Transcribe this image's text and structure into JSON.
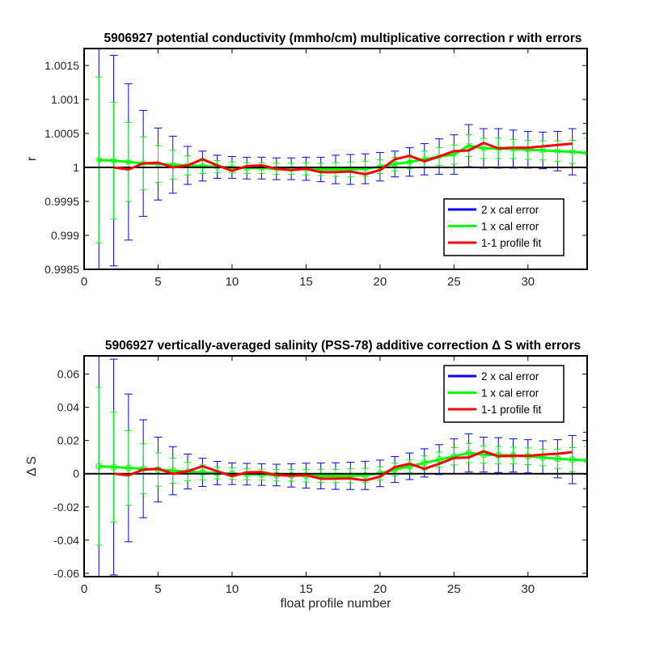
{
  "chart_data": [
    {
      "type": "line",
      "title": "5906927 potential conductivity (mmho/cm) multiplicative correction r with errors",
      "xlabel": "",
      "ylabel": "r",
      "xlim": [
        0,
        34
      ],
      "ylim": [
        0.9985,
        1.00175
      ],
      "xticks": [
        0,
        5,
        10,
        15,
        20,
        25,
        30
      ],
      "xtick_labels": [
        "0",
        "5",
        "10",
        "15",
        "20",
        "25",
        "30"
      ],
      "yticks": [
        0.9985,
        0.999,
        0.9995,
        1,
        1.0005,
        1.001,
        1.0015
      ],
      "ytick_labels": [
        "0.9985",
        "0.999",
        "0.9995",
        "1",
        "1.0005",
        "1.001",
        "1.0015"
      ],
      "grid": false,
      "legend_position": "bottom-right",
      "reference_line": 1,
      "x": [
        1,
        2,
        3,
        4,
        5,
        6,
        7,
        8,
        9,
        10,
        11,
        12,
        13,
        14,
        15,
        16,
        17,
        18,
        19,
        20,
        21,
        22,
        23,
        24,
        25,
        26,
        27,
        28,
        29,
        30,
        31,
        32,
        33,
        34
      ],
      "series": [
        {
          "name": "2 x cal error",
          "color": "#0000ff",
          "kind": "errorbar",
          "center": [
            1.00011,
            1.0001,
            1.00008,
            1.00006,
            1.00005,
            1.00004,
            1.00003,
            1.00002,
            1.00001,
            1.0,
            0.99999,
            0.99999,
            0.99998,
            0.99998,
            0.99998,
            0.99997,
            0.99997,
            0.99997,
            0.99998,
            1.00001,
            1.00005,
            1.00008,
            1.00012,
            1.00016,
            1.00019,
            1.00032,
            1.00028,
            1.00028,
            1.00027,
            1.00026,
            1.00025,
            1.00024,
            1.00023,
            1.00021
          ],
          "error": [
            0.0026,
            0.00155,
            0.00115,
            0.00078,
            0.00053,
            0.00042,
            0.00028,
            0.00022,
            0.00017,
            0.00016,
            0.00016,
            0.00016,
            0.00016,
            0.00016,
            0.00017,
            0.00018,
            0.00021,
            0.00022,
            0.00022,
            0.00021,
            0.00019,
            0.00021,
            0.00023,
            0.00026,
            0.00029,
            0.00031,
            0.00029,
            0.00029,
            0.00028,
            0.00027,
            0.00027,
            0.00029,
            0.00034,
            0.00044
          ]
        },
        {
          "name": "1 x cal error",
          "color": "#00ff00",
          "kind": "errorbar",
          "center": [
            1.00011,
            1.0001,
            1.00008,
            1.00006,
            1.00005,
            1.00004,
            1.00003,
            1.00002,
            1.00001,
            1.0,
            0.99999,
            0.99999,
            0.99998,
            0.99998,
            0.99998,
            0.99997,
            0.99997,
            0.99997,
            0.99998,
            1.00001,
            1.00005,
            1.00008,
            1.00012,
            1.00016,
            1.00019,
            1.00032,
            1.00028,
            1.00028,
            1.00027,
            1.00026,
            1.00025,
            1.00024,
            1.00023,
            1.00021
          ],
          "error": [
            0.00122,
            0.00086,
            0.00058,
            0.00039,
            0.00027,
            0.00021,
            0.00014,
            0.00011,
            9e-05,
            8e-05,
            8e-05,
            8e-05,
            8e-05,
            8e-05,
            9e-05,
            9e-05,
            0.0001,
            0.00011,
            0.00011,
            0.0001,
            0.0001,
            0.0001,
            0.00012,
            0.00013,
            0.00014,
            0.00016,
            0.00015,
            0.00015,
            0.00014,
            0.00014,
            0.00014,
            0.00015,
            0.00017,
            0.00022
          ]
        },
        {
          "name": "1-1 profile fit",
          "color": "#ff0000",
          "kind": "line",
          "x": [
            2,
            3,
            4,
            5,
            6,
            7,
            8,
            9,
            10,
            11,
            12,
            13,
            14,
            15,
            16,
            17,
            18,
            19,
            20,
            21,
            22,
            23,
            24,
            25,
            26,
            27,
            28,
            29,
            30,
            31,
            32,
            33
          ],
          "values": [
            1.0,
            0.99997,
            1.00006,
            1.00007,
            1.0,
            1.00003,
            1.00012,
            1.00003,
            0.99995,
            1.00002,
            1.00003,
            0.99998,
            0.99996,
            0.99998,
            0.99993,
            0.99993,
            0.99994,
            0.9999,
            0.99996,
            1.00012,
            1.00017,
            1.00009,
            1.00016,
            1.00024,
            1.00025,
            1.00036,
            1.00028,
            1.00029,
            1.00029,
            1.00031,
            1.00033,
            1.00035
          ]
        }
      ],
      "legend": [
        "2 x cal error",
        "1 x cal error",
        "1-1 profile fit"
      ]
    },
    {
      "type": "line",
      "title": "5906927 vertically-averaged salinity (PSS-78) additive correction Δ S with errors",
      "xlabel": "float profile number",
      "ylabel": "Δ S",
      "xlim": [
        0,
        34
      ],
      "ylim": [
        -0.062,
        0.071
      ],
      "xticks": [
        0,
        5,
        10,
        15,
        20,
        25,
        30
      ],
      "xtick_labels": [
        "0",
        "5",
        "10",
        "15",
        "20",
        "25",
        "30"
      ],
      "yticks": [
        -0.06,
        -0.04,
        -0.02,
        0,
        0.02,
        0.04,
        0.06
      ],
      "ytick_labels": [
        "-0.06",
        "-0.04",
        "-0.02",
        "0",
        "0.02",
        "0.04",
        "0.06"
      ],
      "grid": false,
      "legend_position": "top-right",
      "reference_line": 0,
      "x": [
        1,
        2,
        3,
        4,
        5,
        6,
        7,
        8,
        9,
        10,
        11,
        12,
        13,
        14,
        15,
        16,
        17,
        18,
        19,
        20,
        21,
        22,
        23,
        24,
        25,
        26,
        27,
        28,
        29,
        30,
        31,
        32,
        33,
        34
      ],
      "series": [
        {
          "name": "2 x cal error",
          "color": "#0000ff",
          "kind": "errorbar",
          "center": [
            0.0045,
            0.004,
            0.0035,
            0.003,
            0.0025,
            0.0018,
            0.0013,
            0.0008,
            0.0004,
            0.0,
            -0.0003,
            -0.0005,
            -0.0008,
            -0.001,
            -0.0012,
            -0.0013,
            -0.0014,
            -0.0013,
            -0.001,
            0.0002,
            0.0025,
            0.0045,
            0.0065,
            0.0085,
            0.0105,
            0.0125,
            0.0115,
            0.0112,
            0.011,
            0.0105,
            0.0098,
            0.009,
            0.0085,
            0.008
          ],
          "error": [
            0.11,
            0.065,
            0.0445,
            0.0295,
            0.0195,
            0.0145,
            0.0105,
            0.0085,
            0.007,
            0.0065,
            0.0065,
            0.0065,
            0.0065,
            0.007,
            0.0075,
            0.0078,
            0.008,
            0.0082,
            0.0085,
            0.008,
            0.0078,
            0.008,
            0.0085,
            0.009,
            0.0105,
            0.0115,
            0.0105,
            0.0105,
            0.01,
            0.01,
            0.01,
            0.0115,
            0.0145,
            0.017
          ]
        },
        {
          "name": "1 x cal error",
          "color": "#00ff00",
          "kind": "errorbar",
          "center": [
            0.0045,
            0.004,
            0.0035,
            0.003,
            0.0025,
            0.0018,
            0.0013,
            0.0008,
            0.0004,
            0.0,
            -0.0003,
            -0.0005,
            -0.0008,
            -0.001,
            -0.0012,
            -0.0013,
            -0.0014,
            -0.0013,
            -0.001,
            0.0002,
            0.0025,
            0.0045,
            0.0065,
            0.0085,
            0.0105,
            0.0125,
            0.0115,
            0.0112,
            0.011,
            0.0105,
            0.0098,
            0.009,
            0.0085,
            0.008
          ],
          "error": [
            0.0475,
            0.033,
            0.0225,
            0.015,
            0.01,
            0.0075,
            0.0055,
            0.0045,
            0.0035,
            0.0035,
            0.0033,
            0.0033,
            0.0033,
            0.0035,
            0.0038,
            0.004,
            0.004,
            0.0042,
            0.0042,
            0.004,
            0.0038,
            0.004,
            0.0042,
            0.0045,
            0.0052,
            0.0058,
            0.0052,
            0.0052,
            0.005,
            0.005,
            0.005,
            0.0058,
            0.0072,
            0.0085
          ]
        },
        {
          "name": "1-1 profile fit",
          "color": "#ff0000",
          "kind": "line",
          "x": [
            2,
            3,
            4,
            5,
            6,
            7,
            8,
            9,
            10,
            11,
            12,
            13,
            14,
            15,
            16,
            17,
            18,
            19,
            20,
            21,
            22,
            23,
            24,
            25,
            26,
            27,
            28,
            29,
            30,
            31,
            32,
            33
          ],
          "values": [
            0.0,
            -0.001,
            0.0025,
            0.003,
            0.0,
            0.0015,
            0.0045,
            0.0015,
            -0.0015,
            0.0008,
            0.001,
            -0.0008,
            -0.0012,
            -0.0008,
            -0.003,
            -0.003,
            -0.0028,
            -0.004,
            -0.0018,
            0.004,
            0.006,
            0.003,
            0.006,
            0.0095,
            0.0098,
            0.0135,
            0.0105,
            0.0108,
            0.0108,
            0.0115,
            0.012,
            0.013
          ]
        }
      ],
      "legend": [
        "2 x cal error",
        "1 x cal error",
        "1-1 profile fit"
      ]
    }
  ]
}
